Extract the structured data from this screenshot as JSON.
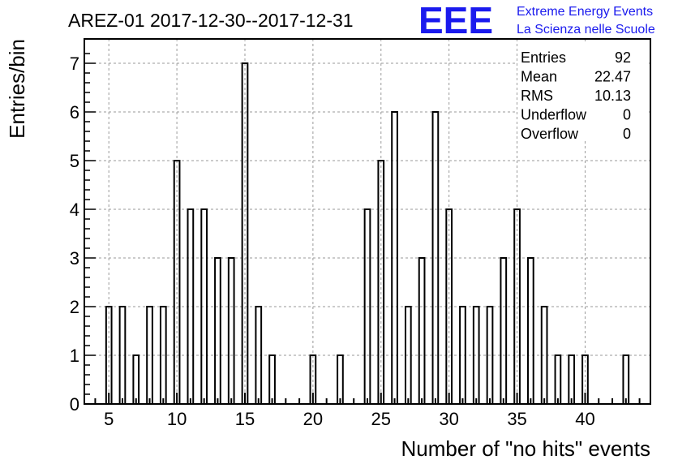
{
  "chart_data": {
    "type": "bar",
    "title": "AREZ-01 2017-12-30--2017-12-31",
    "xlabel": "Number of \"no hits\" events",
    "ylabel": "Entries/bin",
    "xlim": [
      3.2,
      44.8
    ],
    "ylim": [
      0,
      7.5
    ],
    "x_ticks": [
      5,
      10,
      15,
      20,
      25,
      30,
      35,
      40
    ],
    "y_ticks": [
      0,
      1,
      2,
      3,
      4,
      5,
      6,
      7
    ],
    "grid": true,
    "bin_width": 0.4,
    "x": [
      5,
      6,
      7,
      8,
      9,
      10,
      11,
      12,
      13,
      14,
      15,
      16,
      17,
      18,
      19,
      20,
      21,
      22,
      23,
      24,
      25,
      26,
      27,
      28,
      29,
      30,
      31,
      32,
      33,
      34,
      35,
      36,
      37,
      38,
      39,
      40,
      41,
      42,
      43
    ],
    "values": [
      2,
      2,
      1,
      2,
      2,
      5,
      4,
      4,
      3,
      3,
      7,
      2,
      1,
      0,
      0,
      1,
      0,
      1,
      0,
      4,
      5,
      6,
      2,
      3,
      6,
      4,
      2,
      2,
      2,
      3,
      4,
      3,
      2,
      1,
      1,
      1,
      0,
      0,
      1
    ],
    "stats": [
      {
        "label": "Entries",
        "value": "92"
      },
      {
        "label": "Mean",
        "value": "22.47"
      },
      {
        "label": "RMS",
        "value": "10.13"
      },
      {
        "label": "Underflow",
        "value": "0"
      },
      {
        "label": "Overflow",
        "value": "0"
      }
    ]
  },
  "logo": {
    "mark": "EEE",
    "line1": "Extreme Energy Events",
    "line2": "La Scienza nelle Scuole",
    "color": "#1a1aee"
  }
}
